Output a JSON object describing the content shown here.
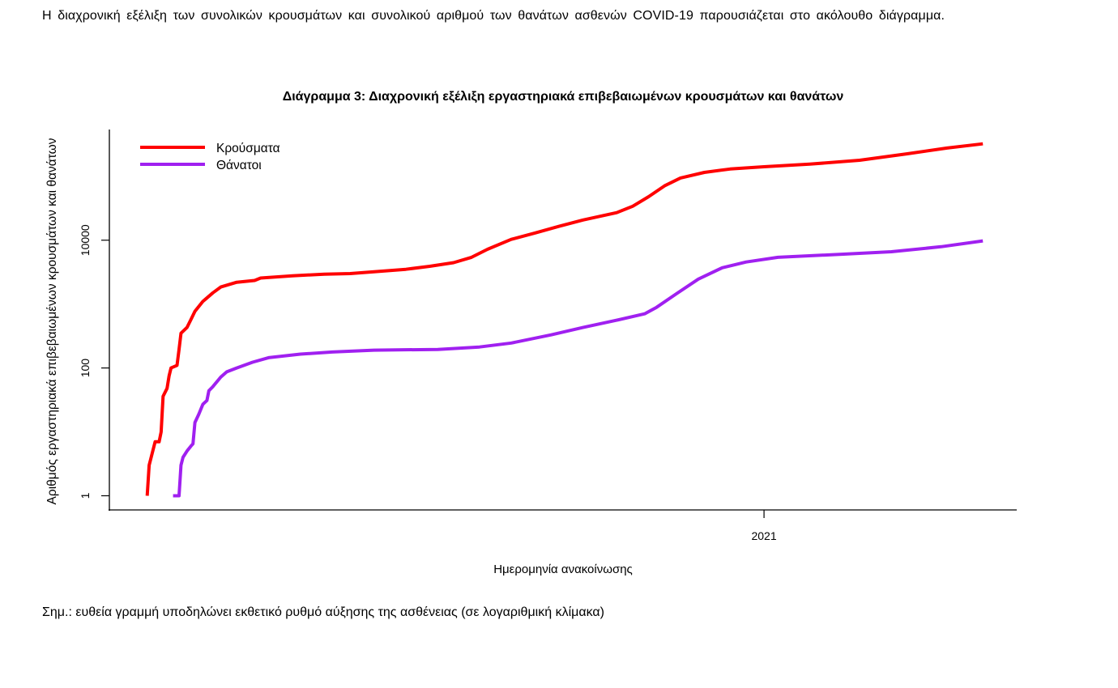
{
  "document": {
    "intro_text": "Η διαχρονική εξέλιξη των συνολικών κρουσμάτων και συνολικού αριθμού των θανάτων ασθενών COVID-19 παρουσιάζεται στο ακόλουθο διάγραμμα.",
    "note_text": "Σημ.: ευθεία γραμμή υποδηλώνει εκθετικό ρυθμό αύξησης της ασθένειας (σε λογαριθμική κλίμακα)"
  },
  "chart_data": {
    "type": "line",
    "title": "Διάγραμμα 3: Διαχρονική εξέλιξη εργαστηριακά επιβεβαιωμένων κρουσμάτων και θανάτων",
    "xlabel": "Ημερομηνία ανακοίνωσης",
    "ylabel": "Αριθμός εργαστηριακά επιβεβαιωμένων κρουσμάτων και θανάτων",
    "x_unit": "days since 2020-01-01",
    "xlim": [
      37,
      493
    ],
    "x_ticks": [
      {
        "value": 366,
        "label": "2021"
      }
    ],
    "y_scale": "log",
    "ylim": [
      0.6,
      540000
    ],
    "y_ticks": [
      {
        "value": 1,
        "label": "1"
      },
      {
        "value": 100,
        "label": "100"
      },
      {
        "value": 10000,
        "label": "10000"
      }
    ],
    "grid": false,
    "legend_position": "top-left",
    "series": [
      {
        "name": "Κρούσματα",
        "color": "#ff0000",
        "points": [
          [
            56,
            1
          ],
          [
            57,
            3
          ],
          [
            58,
            4
          ],
          [
            60,
            7
          ],
          [
            62,
            7
          ],
          [
            63,
            10
          ],
          [
            64,
            36
          ],
          [
            66,
            48
          ],
          [
            67,
            75
          ],
          [
            68,
            100
          ],
          [
            71,
            110
          ],
          [
            72,
            195
          ],
          [
            73,
            350
          ],
          [
            76,
            430
          ],
          [
            78,
            575
          ],
          [
            80,
            770
          ],
          [
            84,
            1100
          ],
          [
            89,
            1500
          ],
          [
            93,
            1850
          ],
          [
            101,
            2200
          ],
          [
            110,
            2340
          ],
          [
            113,
            2560
          ],
          [
            129,
            2770
          ],
          [
            145,
            2940
          ],
          [
            158,
            3000
          ],
          [
            170,
            3200
          ],
          [
            186,
            3500
          ],
          [
            198,
            3900
          ],
          [
            210,
            4450
          ],
          [
            219,
            5400
          ],
          [
            227,
            7200
          ],
          [
            239,
            10300
          ],
          [
            251,
            13000
          ],
          [
            263,
            16500
          ],
          [
            275,
            20700
          ],
          [
            292,
            27000
          ],
          [
            300,
            34000
          ],
          [
            308,
            48000
          ],
          [
            316,
            71000
          ],
          [
            324,
            94000
          ],
          [
            336,
            115000
          ],
          [
            349,
            130000
          ],
          [
            366,
            141000
          ],
          [
            389,
            155000
          ],
          [
            414,
            178000
          ],
          [
            438,
            225000
          ],
          [
            458,
            277000
          ],
          [
            476,
            322000
          ]
        ]
      },
      {
        "name": "Θάνατοι",
        "color": "#a020f0",
        "points": [
          [
            69,
            1
          ],
          [
            72,
            1
          ],
          [
            73,
            3
          ],
          [
            74,
            4
          ],
          [
            76,
            5
          ],
          [
            78,
            6
          ],
          [
            79,
            6.5
          ],
          [
            80,
            14
          ],
          [
            82,
            19
          ],
          [
            84,
            27
          ],
          [
            86,
            31
          ],
          [
            87,
            44
          ],
          [
            89,
            51
          ],
          [
            93,
            72
          ],
          [
            96,
            87
          ],
          [
            101,
            100
          ],
          [
            109,
            123
          ],
          [
            117,
            145
          ],
          [
            133,
            165
          ],
          [
            149,
            178
          ],
          [
            170,
            190
          ],
          [
            202,
            195
          ],
          [
            223,
            213
          ],
          [
            239,
            246
          ],
          [
            259,
            330
          ],
          [
            275,
            430
          ],
          [
            292,
            560
          ],
          [
            306,
            705
          ],
          [
            312,
            890
          ],
          [
            322,
            1450
          ],
          [
            333,
            2460
          ],
          [
            345,
            3700
          ],
          [
            357,
            4550
          ],
          [
            373,
            5400
          ],
          [
            406,
            6050
          ],
          [
            430,
            6600
          ],
          [
            455,
            7900
          ],
          [
            476,
            9750
          ]
        ]
      }
    ]
  }
}
